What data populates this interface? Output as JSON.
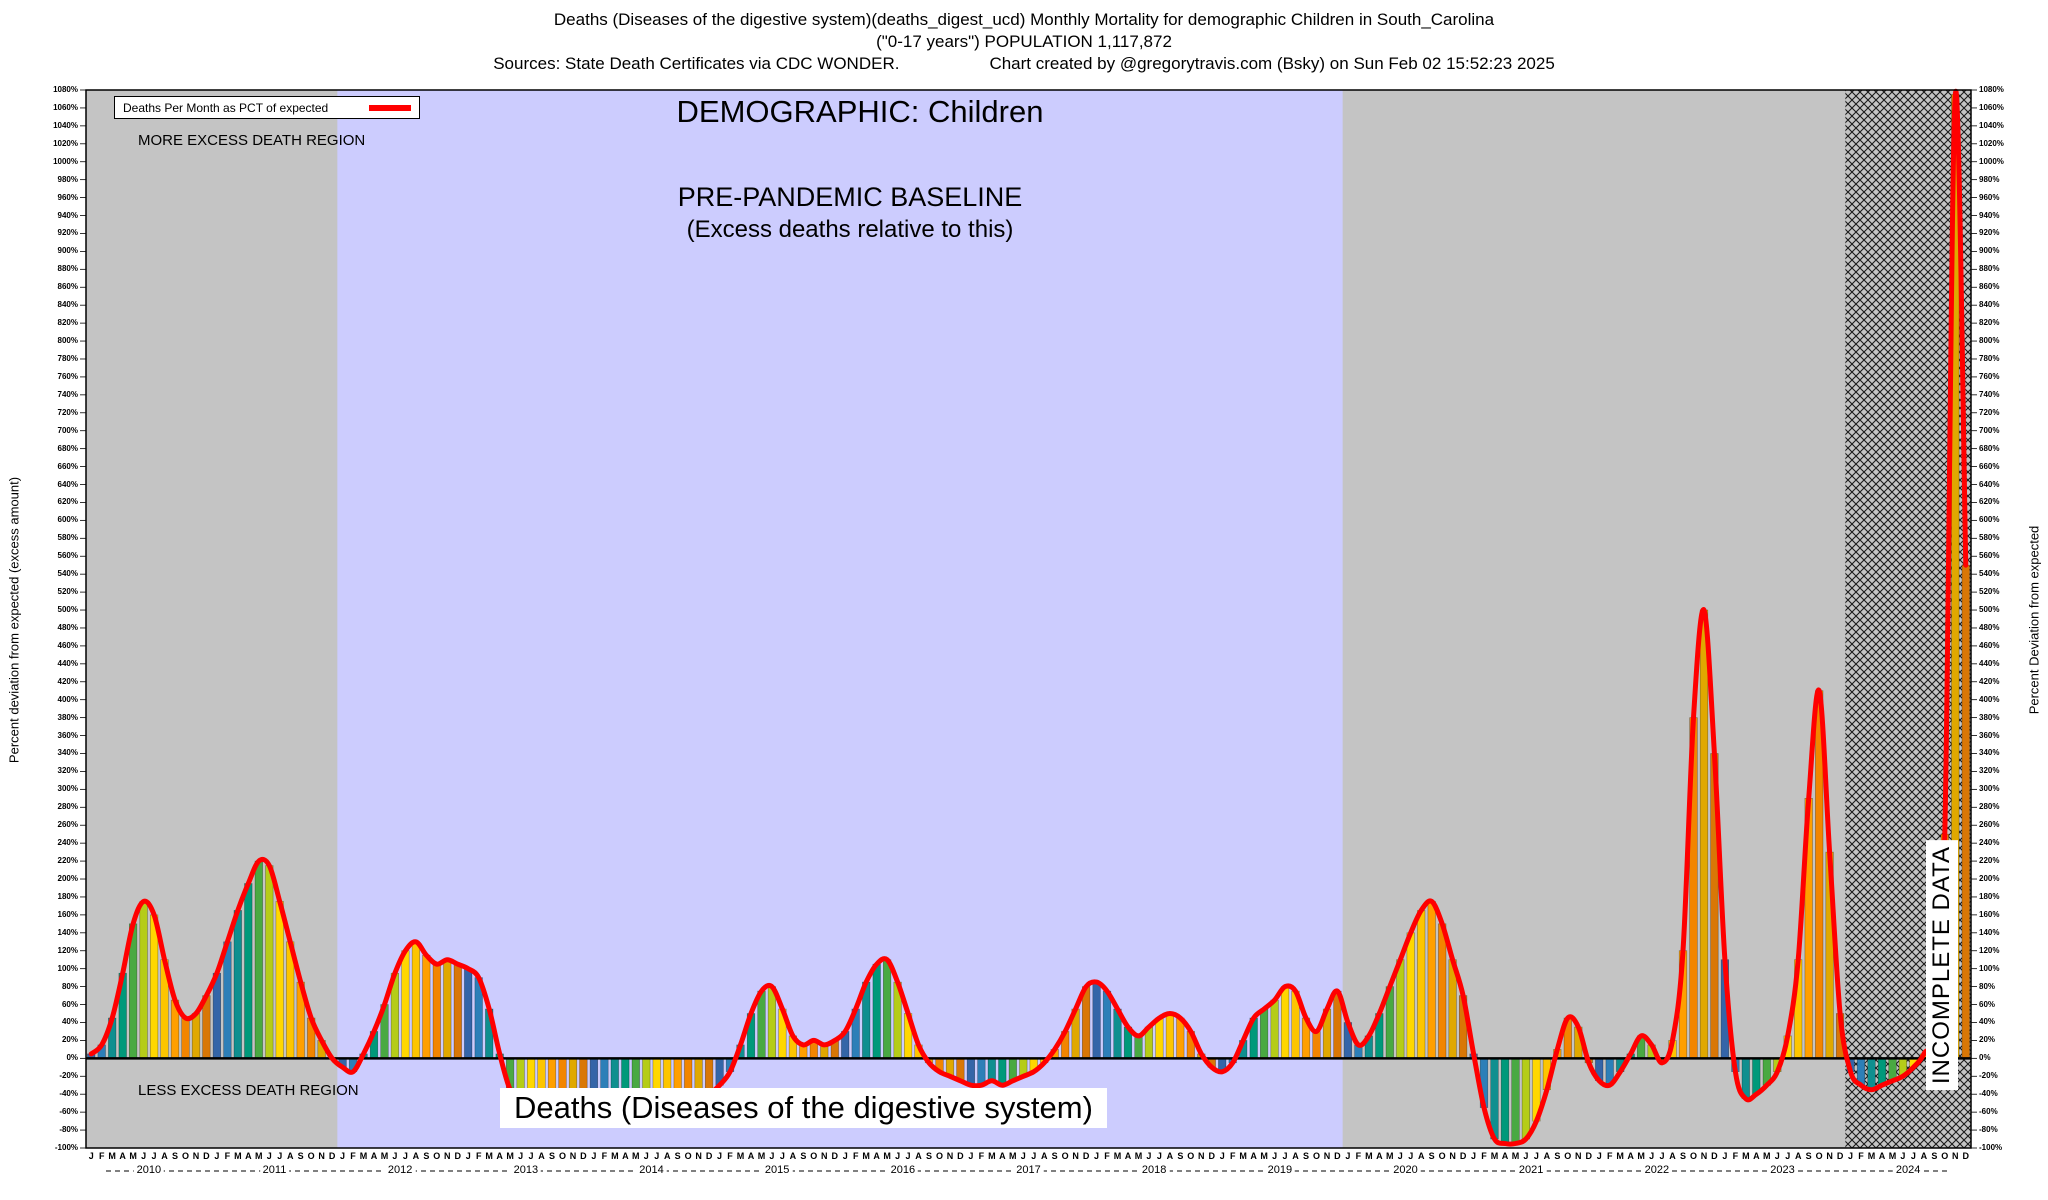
{
  "page": {
    "title_line1": "Deaths (Diseases of the digestive system)(deaths_digest_ucd) Monthly Mortality for demographic Children in South_Carolina",
    "title_line2": "(\"0-17 years\") POPULATION 1,117,872",
    "sources": "Sources: State Death Certificates via CDC WONDER.",
    "credit": "Chart created by @gregorytravis.com (Bsky) on Sun Feb 02 15:52:23 2025"
  },
  "chart": {
    "legend_label": "Deaths Per Month as PCT of expected",
    "more_excess_label": "MORE EXCESS DEATH REGION",
    "less_excess_label": "LESS EXCESS DEATH REGION",
    "demographic_label": "DEMOGRAPHIC: Children",
    "prepandemic_label1": "PRE-PANDEMIC BASELINE",
    "prepandemic_label2": "(Excess deaths relative to this)",
    "bottom_label": "Deaths (Diseases of the digestive system)",
    "incomplete_label": "INCOMPLETE DATA",
    "left_axis_title": "Percent deviation from expected (excess amount)",
    "right_axis_title": "Percent Deviation from expected"
  },
  "chart_data": {
    "type": "bar",
    "title": "Deaths (Diseases of the digestive system) Monthly Mortality, Children, South Carolina",
    "series_name": "Deaths Per Month as PCT of expected",
    "ylabel_left": "Percent deviation from expected (excess amount)",
    "ylabel_right": "Percent Deviation from expected",
    "ylim": [
      -100,
      1080
    ],
    "y_tick_step": 20,
    "y_tick_suffix": "%",
    "baseline": 0,
    "grid": false,
    "legend_position": "top-left",
    "years": [
      "2010",
      "2011",
      "2012",
      "2013",
      "2014",
      "2015",
      "2016",
      "2017",
      "2018",
      "2019",
      "2020",
      "2021",
      "2022",
      "2023",
      "2024"
    ],
    "month_letters": "JFMAMJJASOND",
    "values": [
      5,
      15,
      45,
      95,
      150,
      175,
      160,
      110,
      65,
      45,
      50,
      70,
      95,
      130,
      165,
      195,
      220,
      215,
      175,
      130,
      85,
      45,
      20,
      0,
      -10,
      -15,
      5,
      30,
      60,
      95,
      120,
      130,
      115,
      105,
      110,
      105,
      100,
      90,
      55,
      5,
      -35,
      -50,
      -55,
      -50,
      -45,
      -50,
      -45,
      -50,
      -45,
      -50,
      -45,
      -50,
      -45,
      -40,
      -45,
      -50,
      -45,
      -40,
      -45,
      -40,
      -30,
      -15,
      15,
      50,
      75,
      80,
      55,
      25,
      15,
      20,
      15,
      20,
      30,
      55,
      85,
      105,
      110,
      85,
      50,
      15,
      -5,
      -15,
      -20,
      -25,
      -30,
      -30,
      -25,
      -30,
      -25,
      -20,
      -15,
      -5,
      10,
      30,
      55,
      80,
      85,
      75,
      55,
      35,
      25,
      35,
      45,
      50,
      45,
      30,
      5,
      -10,
      -15,
      -5,
      20,
      45,
      55,
      65,
      80,
      75,
      45,
      30,
      55,
      75,
      40,
      15,
      25,
      50,
      80,
      110,
      140,
      165,
      175,
      150,
      110,
      70,
      5,
      -55,
      -90,
      -95,
      -95,
      -90,
      -70,
      -35,
      10,
      45,
      35,
      -5,
      -25,
      -30,
      -15,
      5,
      25,
      15,
      -5,
      20,
      120,
      380,
      500,
      340,
      110,
      -15,
      -45,
      -40,
      -30,
      -15,
      25,
      110,
      290,
      410,
      230,
      50,
      -15,
      -30,
      -35,
      -30,
      -25,
      -20,
      -10,
      5,
      40,
      250,
      1075,
      550
    ],
    "line_color": "#ff0000",
    "plot_background": "#c4c4c4",
    "month_colors": [
      "#3465a8",
      "#2d7fb8",
      "#0f8f8f",
      "#00997a",
      "#49a942",
      "#b5cc18",
      "#ffd700",
      "#fdc500",
      "#ff9f00",
      "#f28500",
      "#e0a800",
      "#d97706"
    ],
    "regions": {
      "pre_pandemic_baseline": {
        "label": "PRE-PANDEMIC BASELINE (Excess deaths relative to this)",
        "start_year": 2012,
        "end_year": 2020,
        "color": "#ccccfe"
      },
      "incomplete_data": {
        "label": "INCOMPLETE DATA",
        "start_year": 2024,
        "end_year": 2025,
        "style": "crosshatch"
      }
    }
  }
}
